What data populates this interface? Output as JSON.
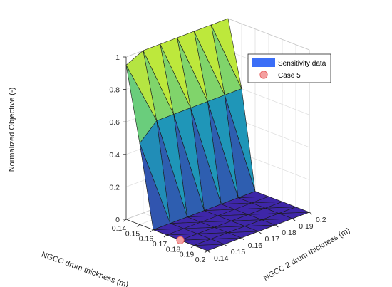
{
  "chart_data": {
    "type": "surface",
    "x_label": "NGCC drum thickness (m)",
    "y_label": "NGCC 2 drum thickness (m)",
    "z_label": "Normalized Objective (-)",
    "x_ticks": [
      "0.14",
      "0.15",
      "0.16",
      "0.17",
      "0.18",
      "0.19",
      "0.2"
    ],
    "y_ticks": [
      "0.14",
      "0.15",
      "0.16",
      "0.17",
      "0.18",
      "0.19",
      "0.2"
    ],
    "z_ticks": [
      "0",
      "0.2",
      "0.4",
      "0.6",
      "0.8",
      "1"
    ],
    "x_range": [
      0.14,
      0.2
    ],
    "y_range": [
      0.14,
      0.2
    ],
    "z_range": [
      0,
      1
    ],
    "grid": true,
    "x": [
      0.14,
      0.15,
      0.16,
      0.17,
      0.18,
      0.19,
      0.2
    ],
    "y": [
      0.14,
      0.15,
      0.16,
      0.17,
      0.18,
      0.19,
      0.2
    ],
    "z_description": "rows = x (NGCC drum thickness), columns = y (NGCC 2 drum thickness)",
    "z": [
      [
        0.95,
        1.0,
        1.0,
        1.0,
        1.0,
        1.0,
        1.0
      ],
      [
        0.5,
        0.6,
        0.6,
        0.6,
        0.6,
        0.6,
        0.6
      ],
      [
        0.0,
        0.0,
        0.0,
        0.0,
        0.0,
        0.0,
        0.0
      ],
      [
        0.0,
        0.0,
        0.0,
        0.0,
        0.0,
        0.0,
        0.0
      ],
      [
        0.0,
        0.0,
        0.0,
        0.0,
        0.0,
        0.0,
        0.0
      ],
      [
        0.0,
        0.0,
        0.0,
        0.0,
        0.0,
        0.0,
        0.0
      ],
      [
        0.0,
        0.0,
        0.0,
        0.0,
        0.0,
        0.0,
        0.0
      ]
    ],
    "series": [
      {
        "name": "Sensitivity data",
        "kind": "surface",
        "color": "#3b6ef7"
      },
      {
        "name": "Case 5",
        "kind": "point",
        "x": 0.18,
        "y": 0.14,
        "z": 0,
        "color": "#f4a0a0"
      }
    ],
    "colormap": [
      "#3e26a8",
      "#17b2bc",
      "#f9fb0e"
    ],
    "legend_position": "top-right"
  }
}
